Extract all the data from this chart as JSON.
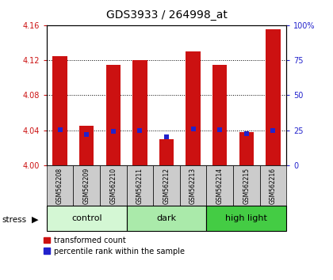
{
  "title": "GDS3933 / 264998_at",
  "samples": [
    "GSM562208",
    "GSM562209",
    "GSM562210",
    "GSM562211",
    "GSM562212",
    "GSM562213",
    "GSM562214",
    "GSM562215",
    "GSM562216"
  ],
  "red_values": [
    4.125,
    4.045,
    4.115,
    4.12,
    4.03,
    4.13,
    4.115,
    4.038,
    4.155
  ],
  "blue_values": [
    25.5,
    22.0,
    24.0,
    25.0,
    20.5,
    26.0,
    25.5,
    22.5,
    25.0
  ],
  "ylim_left": [
    4.0,
    4.16
  ],
  "ylim_right": [
    0,
    100
  ],
  "yticks_left": [
    4.0,
    4.04,
    4.08,
    4.12,
    4.16
  ],
  "yticks_right": [
    0,
    25,
    50,
    75,
    100
  ],
  "groups": [
    {
      "label": "control",
      "indices": [
        0,
        1,
        2
      ],
      "color": "#d4f7d4"
    },
    {
      "label": "dark",
      "indices": [
        3,
        4,
        5
      ],
      "color": "#aaeaaa"
    },
    {
      "label": "high light",
      "indices": [
        6,
        7,
        8
      ],
      "color": "#44cc44"
    }
  ],
  "bar_color": "#cc1111",
  "blue_color": "#2222cc",
  "bar_width": 0.55,
  "stress_label": "stress",
  "legend1": "transformed count",
  "legend2": "percentile rank within the sample",
  "background_color": "#ffffff",
  "plot_bg_color": "#ffffff",
  "tick_color_left": "#cc1111",
  "tick_color_right": "#2222cc",
  "sample_bg_color": "#cccccc",
  "title_fontsize": 10,
  "tick_fontsize": 7,
  "sample_fontsize": 5.5,
  "group_fontsize": 8,
  "legend_fontsize": 7
}
